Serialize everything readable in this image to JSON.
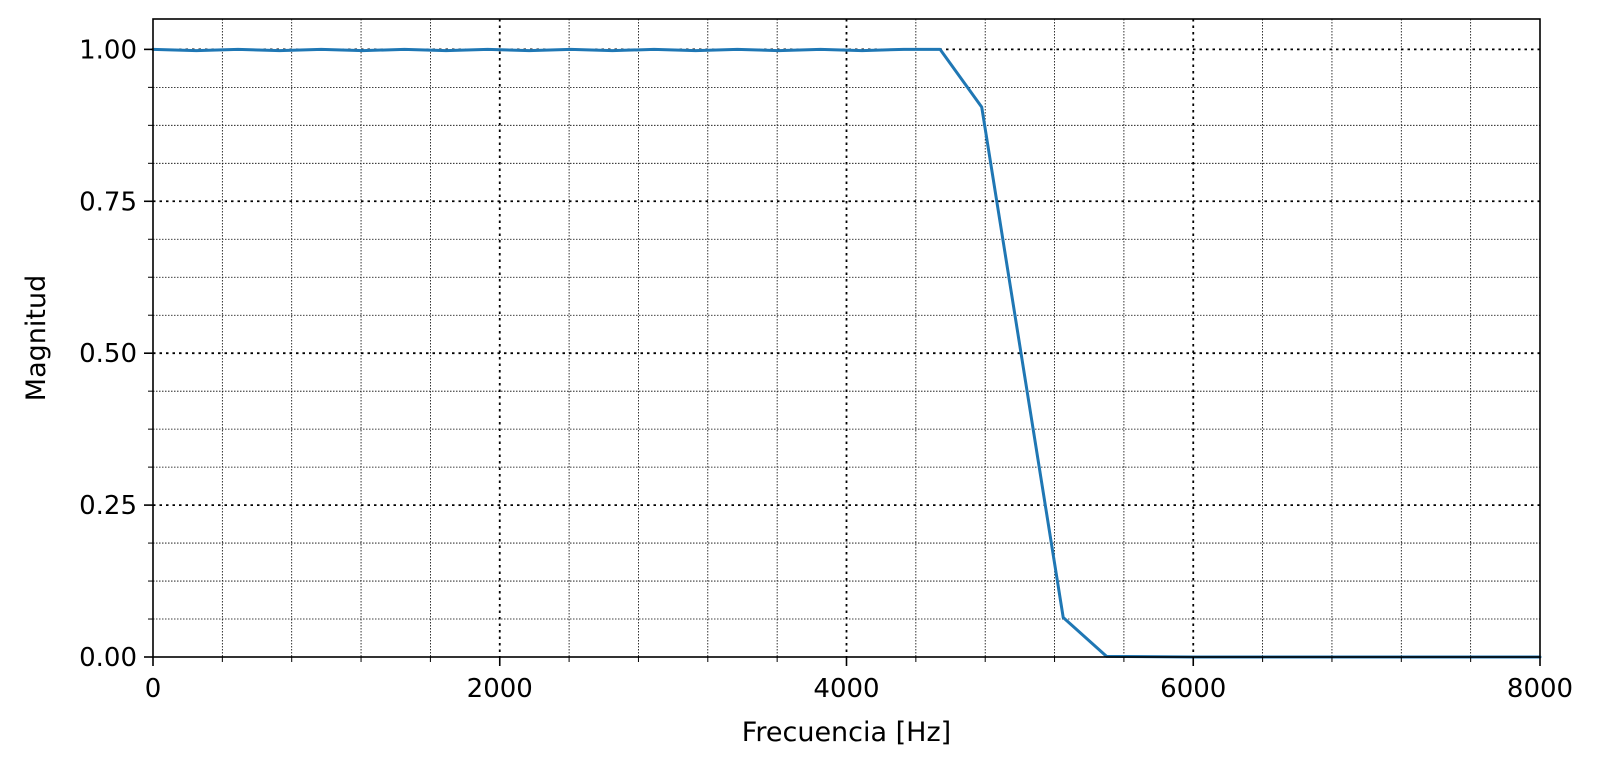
{
  "chart_data": {
    "type": "line",
    "title": "",
    "xlabel": "Frecuencia [Hz]",
    "ylabel": "Magnitud",
    "xlim": [
      0,
      8000
    ],
    "ylim": [
      0,
      1.05
    ],
    "x_ticks": [
      0,
      2000,
      4000,
      6000,
      8000
    ],
    "x_tick_labels": [
      "0",
      "2000",
      "4000",
      "6000",
      "8000"
    ],
    "y_ticks": [
      0,
      0.25,
      0.5,
      0.75,
      1.0
    ],
    "y_tick_labels": [
      "0.00",
      "0.25",
      "0.50",
      "0.75",
      "1.00"
    ],
    "x_minor_step": 400,
    "y_minor_step": 0.0625,
    "grid": true,
    "legend": "none",
    "line_color": "#1f77b4",
    "series": [
      {
        "x": [
          0,
          250,
          490,
          730,
          970,
          1210,
          1450,
          1690,
          1930,
          2170,
          2410,
          2650,
          2890,
          3130,
          3370,
          3610,
          3850,
          4090,
          4330,
          4540,
          4780,
          5250,
          5500,
          6000,
          7000,
          8000
        ],
        "values": [
          1.0,
          0.998,
          1.0,
          0.998,
          1.0,
          0.998,
          1.0,
          0.998,
          1.0,
          0.998,
          1.0,
          0.998,
          1.0,
          0.998,
          1.0,
          0.998,
          1.0,
          0.998,
          1.0,
          1.0,
          0.905,
          0.065,
          0.001,
          0.0,
          0.0,
          0.0
        ]
      }
    ]
  }
}
